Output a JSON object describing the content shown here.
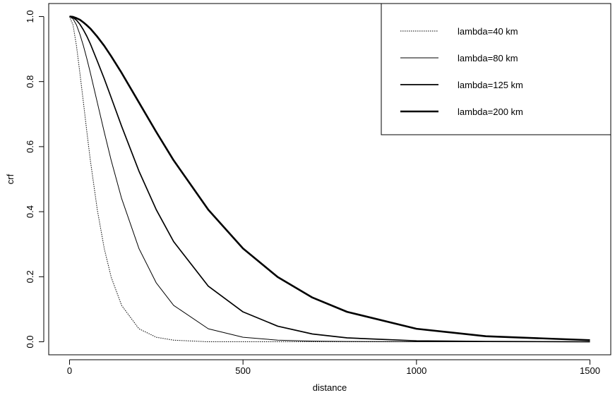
{
  "chart_data": {
    "type": "line",
    "xlabel": "distance",
    "ylabel": "crf",
    "xlim": [
      -60,
      1560
    ],
    "ylim": [
      -0.04,
      1.04
    ],
    "x_ticks": [
      0,
      500,
      1000,
      1500
    ],
    "x_tick_labels": [
      "0",
      "500",
      "1000",
      "1500"
    ],
    "y_ticks": [
      0.0,
      0.2,
      0.4,
      0.6,
      0.8,
      1.0
    ],
    "y_tick_labels": [
      "0.0",
      "0.2",
      "0.4",
      "0.6",
      "0.8",
      "1.0"
    ],
    "grid": false,
    "legend_position": "top-right",
    "x": [
      0,
      10,
      20,
      30,
      40,
      50,
      60,
      80,
      100,
      120,
      150,
      200,
      250,
      300,
      400,
      500,
      600,
      700,
      800,
      1000,
      1200,
      1500
    ],
    "series": [
      {
        "name": "lambda=40 km",
        "style": "dotted",
        "values": [
          1.0,
          0.974,
          0.91,
          0.825,
          0.736,
          0.645,
          0.558,
          0.406,
          0.287,
          0.199,
          0.112,
          0.04,
          0.014,
          0.005,
          0.0,
          0.0,
          0.0,
          0.0,
          0.0,
          0.0,
          0.0,
          0.0
        ]
      },
      {
        "name": "lambda=80 km",
        "style": "thin",
        "values": [
          1.0,
          0.993,
          0.974,
          0.945,
          0.91,
          0.87,
          0.827,
          0.736,
          0.645,
          0.558,
          0.441,
          0.287,
          0.181,
          0.112,
          0.04,
          0.014,
          0.005,
          0.002,
          0.001,
          0.0,
          0.0,
          0.0
        ]
      },
      {
        "name": "lambda=125 km",
        "style": "medium",
        "values": [
          1.0,
          0.997,
          0.989,
          0.976,
          0.959,
          0.939,
          0.916,
          0.863,
          0.809,
          0.751,
          0.663,
          0.525,
          0.406,
          0.308,
          0.171,
          0.092,
          0.048,
          0.024,
          0.012,
          0.003,
          0.001,
          0.0
        ]
      },
      {
        "name": "lambda=200 km",
        "style": "thick",
        "values": [
          1.0,
          0.999,
          0.995,
          0.99,
          0.982,
          0.973,
          0.963,
          0.938,
          0.91,
          0.878,
          0.827,
          0.736,
          0.645,
          0.558,
          0.406,
          0.287,
          0.199,
          0.136,
          0.092,
          0.04,
          0.017,
          0.005
        ]
      }
    ]
  }
}
